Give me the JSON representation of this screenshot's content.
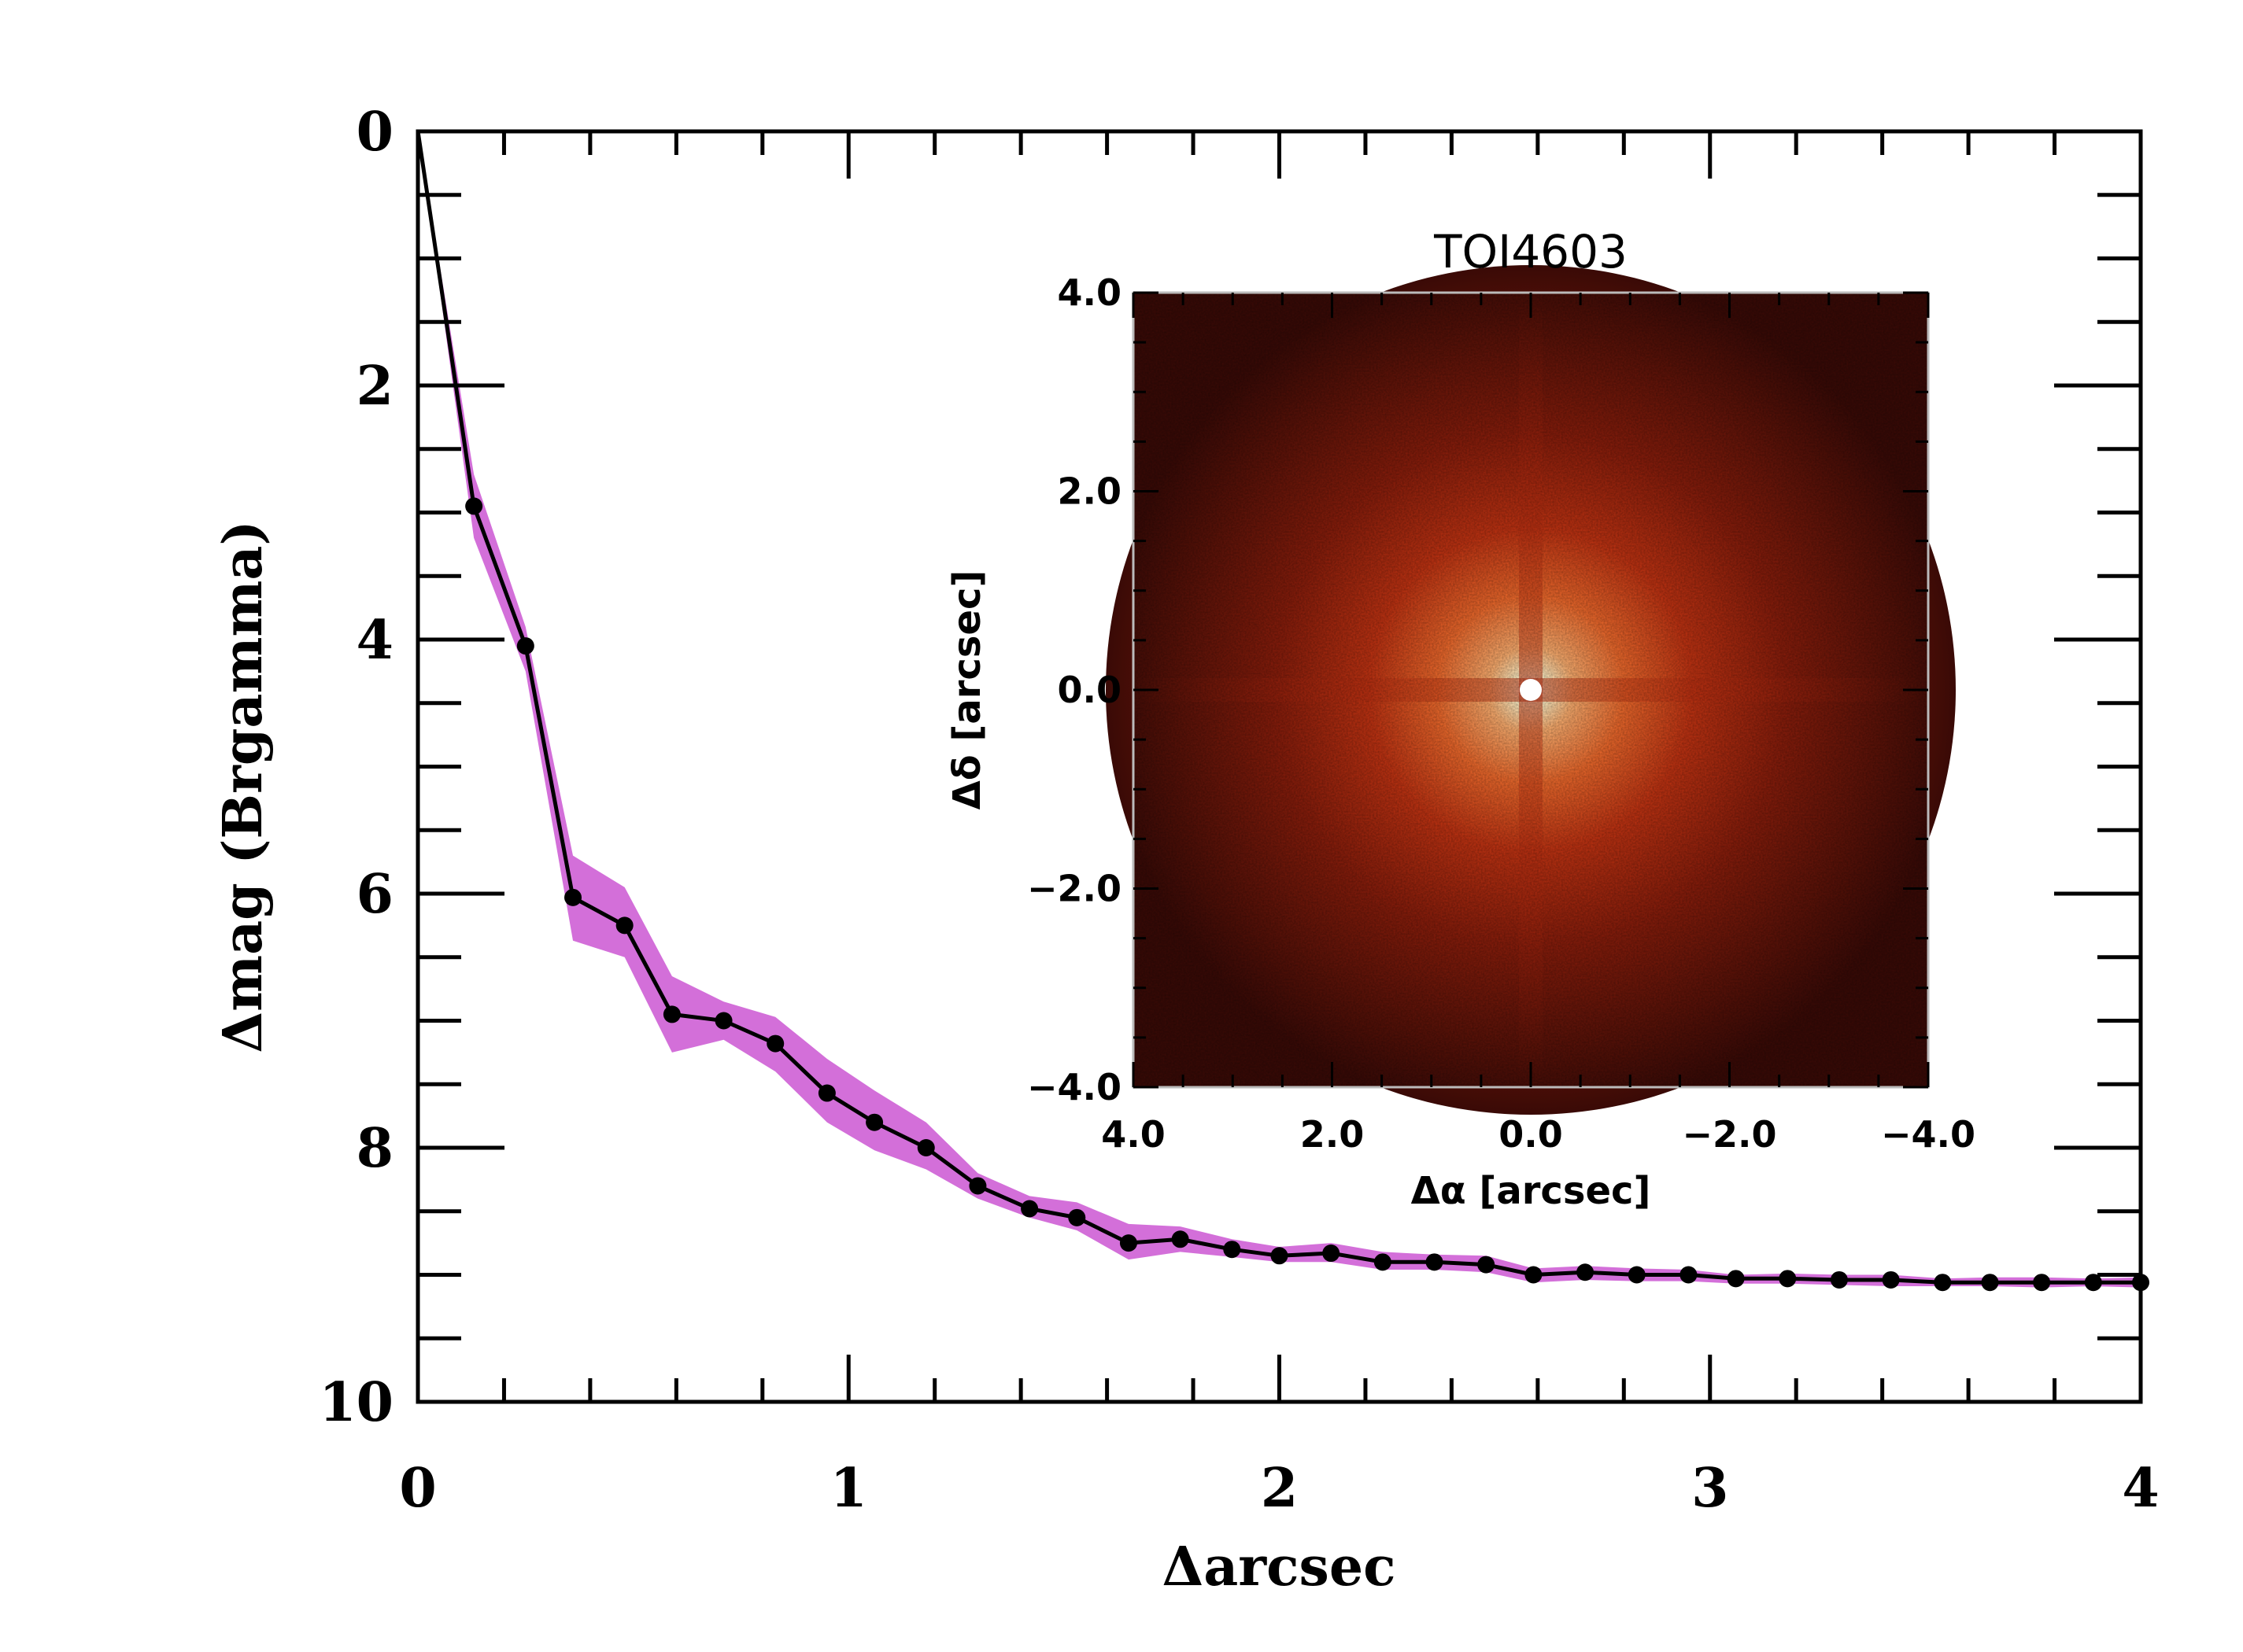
{
  "chart_data": [
    {
      "type": "line",
      "xlabel": "Δarcsec",
      "ylabel": "Δmag (Brgamma)",
      "xlim": [
        0,
        4
      ],
      "ylim": [
        0,
        10
      ],
      "y_inverted": true,
      "grid": false,
      "x_ticks": [
        "0",
        "1",
        "2",
        "3",
        "4"
      ],
      "y_ticks": [
        "0",
        "2",
        "4",
        "6",
        "8",
        "10"
      ],
      "colors": {
        "line": "#000000",
        "band": "#d36fd9"
      },
      "series": [
        {
          "x": [
            0.0,
            0.13,
            0.25,
            0.36,
            0.48,
            0.59,
            0.71,
            0.83,
            0.95,
            1.06,
            1.18,
            1.3,
            1.42,
            1.53,
            1.65,
            1.77,
            1.89,
            2.0,
            2.12,
            2.24,
            2.36,
            2.48,
            2.59,
            2.71,
            2.83,
            2.95,
            3.06,
            3.18,
            3.3,
            3.42,
            3.54,
            3.65,
            3.77,
            3.89,
            4.0
          ],
          "y": [
            0.0,
            2.95,
            4.05,
            6.03,
            6.25,
            6.95,
            7.0,
            7.18,
            7.57,
            7.8,
            8.0,
            8.3,
            8.48,
            8.55,
            8.75,
            8.72,
            8.8,
            8.85,
            8.83,
            8.9,
            8.9,
            8.92,
            9.0,
            8.98,
            9.0,
            9.0,
            9.03,
            9.03,
            9.04,
            9.04,
            9.06,
            9.06,
            9.06,
            9.06,
            9.06
          ],
          "y_lower": [
            0.0,
            2.7,
            3.9,
            5.7,
            5.95,
            6.65,
            6.85,
            6.97,
            7.3,
            7.55,
            7.8,
            8.2,
            8.38,
            8.43,
            8.6,
            8.62,
            8.72,
            8.78,
            8.75,
            8.82,
            8.84,
            8.85,
            8.95,
            8.93,
            8.95,
            8.96,
            9.0,
            8.99,
            9.0,
            9.0,
            9.03,
            9.02,
            9.02,
            9.03,
            9.02
          ],
          "y_upper": [
            0.0,
            3.2,
            4.25,
            6.37,
            6.5,
            7.25,
            7.15,
            7.4,
            7.8,
            8.02,
            8.17,
            8.4,
            8.55,
            8.65,
            8.88,
            8.82,
            8.86,
            8.9,
            8.9,
            8.96,
            8.96,
            8.98,
            9.06,
            9.04,
            9.05,
            9.05,
            9.07,
            9.07,
            9.08,
            9.09,
            9.09,
            9.09,
            9.1,
            9.09,
            9.1
          ]
        }
      ]
    },
    {
      "type": "heatmap",
      "title": "TOI4603",
      "xlabel": "Δα [arcsec]",
      "ylabel": "Δδ [arcsec]",
      "xlim": [
        4.0,
        -4.0
      ],
      "ylim": [
        -4.0,
        4.0
      ],
      "x_ticks": [
        "4.0",
        "2.0",
        "0.0",
        "−2.0",
        "−4.0"
      ],
      "y_ticks": [
        "4.0",
        "2.0",
        "0.0",
        "−2.0",
        "−4.0"
      ],
      "colormap": "red-temperature",
      "colors": {
        "background": "#3a0a06",
        "halo": "#b01a0c",
        "core": "#ffffff"
      }
    }
  ]
}
